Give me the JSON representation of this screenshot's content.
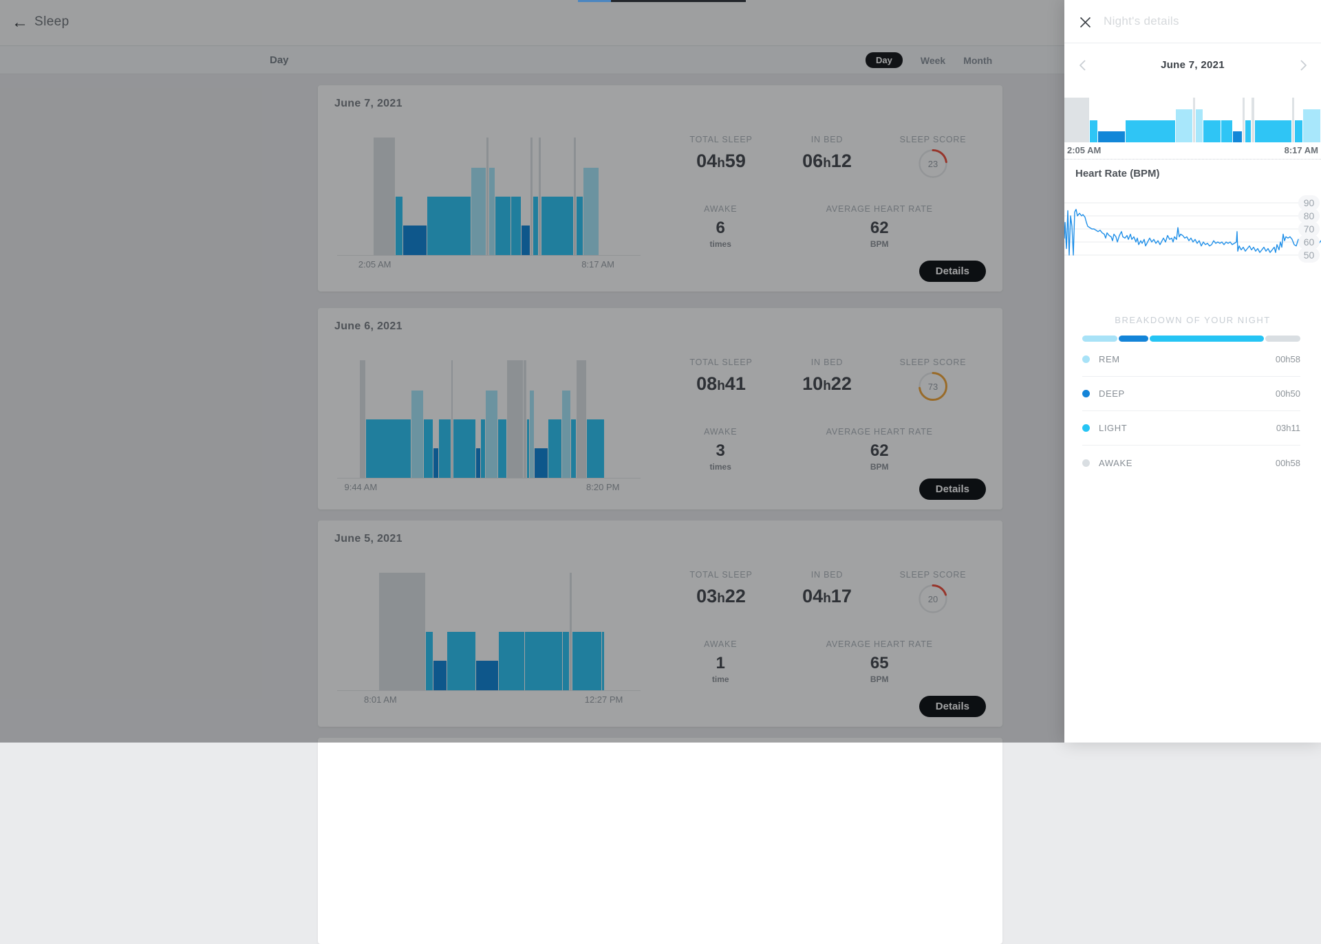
{
  "sleep_list": {
    "header": {
      "title": "Sleep"
    },
    "toolbar": {
      "section_label": "Day",
      "view_options": [
        "Day",
        "Week",
        "Month"
      ],
      "active_view": "Day"
    },
    "stat_labels": {
      "total_sleep": "TOTAL SLEEP",
      "in_bed": "IN BED",
      "sleep_score": "SLEEP SCORE",
      "awake": "AWAKE",
      "avg_hr": "AVERAGE HEART RATE",
      "details": "Details"
    },
    "cards": [
      {
        "date": "June 7, 2021",
        "hypnogram": {
          "start_time": "2:05 AM",
          "end_time": "8:17 AM",
          "segments": [
            [
              "gap",
              52
            ],
            [
              "awake",
              31
            ],
            [
              "light",
              10
            ],
            [
              "deep",
              34
            ],
            [
              "light",
              62
            ],
            [
              "rem",
              21
            ],
            [
              "awake",
              3
            ],
            [
              "rem",
              8
            ],
            [
              "light",
              22
            ],
            [
              "light",
              14
            ],
            [
              "deep",
              11
            ],
            [
              "awake",
              3
            ],
            [
              "light",
              7
            ],
            [
              "awake",
              3
            ],
            [
              "light",
              46
            ],
            [
              "awake",
              3
            ],
            [
              "light",
              9
            ],
            [
              "rem",
              22
            ],
            [
              "gap",
              59
            ]
          ]
        },
        "stats": {
          "total_sleep": "04h59",
          "in_bed": "06h12",
          "score": 23,
          "score_color": "#ef4f3e",
          "awake_count": "6",
          "awake_unit": "times",
          "avg_hr": "62",
          "hr_unit": "BPM"
        }
      },
      {
        "date": "June 6, 2021",
        "hypnogram": {
          "start_time": "9:44 AM",
          "end_time": "8:20 PM",
          "segments": [
            [
              "gap",
              32
            ],
            [
              "awake",
              8
            ],
            [
              "light",
              64
            ],
            [
              "rem",
              17
            ],
            [
              "light",
              12
            ],
            [
              "deep",
              7
            ],
            [
              "light",
              17
            ],
            [
              "awake",
              2
            ],
            [
              "light",
              31
            ],
            [
              "deep",
              6
            ],
            [
              "light",
              6
            ],
            [
              "rem",
              17
            ],
            [
              "light",
              12
            ],
            [
              "awake",
              22
            ],
            [
              "awake",
              4
            ],
            [
              "light",
              3
            ],
            [
              "rem",
              6
            ],
            [
              "deep",
              18
            ],
            [
              "light",
              19
            ],
            [
              "rem",
              12
            ],
            [
              "light",
              7
            ],
            [
              "awake",
              13
            ],
            [
              "light",
              25
            ],
            [
              "gap",
              51
            ]
          ]
        },
        "stats": {
          "total_sleep": "08h41",
          "in_bed": "10h22",
          "score": 73,
          "score_color": "#f2a73b",
          "awake_count": "3",
          "awake_unit": "times",
          "avg_hr": "62",
          "hr_unit": "BPM"
        }
      },
      {
        "date": "June 5, 2021",
        "hypnogram": {
          "start_time": "8:01 AM",
          "end_time": "12:27 PM",
          "segments": [
            [
              "gap",
              60
            ],
            [
              "awake",
              65
            ],
            [
              "light",
              10
            ],
            [
              "deep",
              19
            ],
            [
              "light",
              40
            ],
            [
              "deep",
              31
            ],
            [
              "light",
              36
            ],
            [
              "light",
              53
            ],
            [
              "light",
              9
            ],
            [
              "awake",
              3
            ],
            [
              "light",
              41
            ],
            [
              "light",
              3
            ],
            [
              "gap",
              51
            ]
          ]
        },
        "stats": {
          "total_sleep": "03h22",
          "in_bed": "04h17",
          "score": 20,
          "score_color": "#ef4f3e",
          "awake_count": "1",
          "awake_unit": "time",
          "avg_hr": "65",
          "hr_unit": "BPM"
        }
      }
    ]
  },
  "panel": {
    "title": "Night's details",
    "date": "June 7, 2021",
    "hypnogram": {
      "start_time": "2:05 AM",
      "end_time": "8:17 AM",
      "segments": [
        [
          "awake",
          31
        ],
        [
          "light",
          10
        ],
        [
          "deep",
          34
        ],
        [
          "light",
          62
        ],
        [
          "rem",
          21
        ],
        [
          "awake",
          3
        ],
        [
          "rem",
          8
        ],
        [
          "light",
          22
        ],
        [
          "light",
          14
        ],
        [
          "deep",
          11
        ],
        [
          "awake",
          3
        ],
        [
          "light",
          7
        ],
        [
          "awake",
          3
        ],
        [
          "light",
          46
        ],
        [
          "awake",
          3
        ],
        [
          "light",
          9
        ],
        [
          "rem",
          22
        ]
      ]
    },
    "heart_rate": {
      "title": "Heart Rate (BPM)",
      "y_ticks": [
        90,
        80,
        70,
        60,
        50
      ],
      "line_color": "#1f8fe8",
      "series": [
        [
          0,
          63
        ],
        [
          1,
          75
        ],
        [
          3,
          55
        ],
        [
          5,
          84
        ],
        [
          7,
          50
        ],
        [
          9,
          80
        ],
        [
          11,
          72
        ],
        [
          13,
          50
        ],
        [
          15,
          83
        ],
        [
          17,
          85
        ],
        [
          19,
          80
        ],
        [
          22,
          82
        ],
        [
          25,
          80
        ],
        [
          27,
          81
        ],
        [
          30,
          79
        ],
        [
          32,
          75
        ],
        [
          34,
          72
        ],
        [
          37,
          71
        ],
        [
          40,
          70
        ],
        [
          43,
          70
        ],
        [
          46,
          69
        ],
        [
          49,
          68
        ],
        [
          52,
          69
        ],
        [
          55,
          67
        ],
        [
          58,
          66
        ],
        [
          60,
          63
        ],
        [
          62,
          67
        ],
        [
          65,
          65
        ],
        [
          68,
          64
        ],
        [
          70,
          61
        ],
        [
          72,
          66
        ],
        [
          75,
          64
        ],
        [
          77,
          60
        ],
        [
          80,
          65
        ],
        [
          83,
          68
        ],
        [
          85,
          64
        ],
        [
          88,
          63
        ],
        [
          91,
          65
        ],
        [
          93,
          62
        ],
        [
          96,
          66
        ],
        [
          98,
          62
        ],
        [
          101,
          64
        ],
        [
          104,
          60
        ],
        [
          106,
          63
        ],
        [
          108,
          58
        ],
        [
          111,
          61
        ],
        [
          113,
          59
        ],
        [
          116,
          62
        ],
        [
          118,
          57
        ],
        [
          121,
          60
        ],
        [
          124,
          63
        ],
        [
          127,
          60
        ],
        [
          130,
          62
        ],
        [
          133,
          59
        ],
        [
          136,
          61
        ],
        [
          139,
          58
        ],
        [
          141,
          60
        ],
        [
          144,
          63
        ],
        [
          147,
          60
        ],
        [
          150,
          65
        ],
        [
          153,
          62
        ],
        [
          156,
          63
        ],
        [
          158,
          60
        ],
        [
          160,
          64
        ],
        [
          163,
          62
        ],
        [
          165,
          71
        ],
        [
          167,
          64
        ],
        [
          169,
          66
        ],
        [
          172,
          65
        ],
        [
          175,
          63
        ],
        [
          178,
          64
        ],
        [
          181,
          61
        ],
        [
          184,
          63
        ],
        [
          187,
          60
        ],
        [
          190,
          62
        ],
        [
          193,
          59
        ],
        [
          196,
          61
        ],
        [
          199,
          57
        ],
        [
          202,
          60
        ],
        [
          205,
          58
        ],
        [
          208,
          59
        ],
        [
          211,
          57
        ],
        [
          214,
          58
        ],
        [
          217,
          61
        ],
        [
          220,
          59
        ],
        [
          223,
          60
        ],
        [
          226,
          59
        ],
        [
          229,
          60
        ],
        [
          232,
          58
        ],
        [
          235,
          60
        ],
        [
          238,
          59
        ],
        [
          241,
          60
        ],
        [
          244,
          58
        ],
        [
          247,
          59
        ],
        [
          250,
          60
        ],
        [
          251,
          68
        ],
        [
          252,
          53
        ],
        [
          254,
          57
        ],
        [
          257,
          54
        ],
        [
          260,
          56
        ],
        [
          263,
          53
        ],
        [
          266,
          55
        ],
        [
          269,
          57
        ],
        [
          272,
          54
        ],
        [
          275,
          56
        ],
        [
          278,
          53
        ],
        [
          281,
          55
        ],
        [
          284,
          52
        ],
        [
          287,
          54
        ],
        [
          290,
          56
        ],
        [
          293,
          53
        ],
        [
          296,
          55
        ],
        [
          299,
          52
        ],
        [
          302,
          54
        ],
        [
          305,
          56
        ],
        [
          307,
          52
        ],
        [
          309,
          58
        ],
        [
          312,
          54
        ],
        [
          314,
          60
        ],
        [
          316,
          56
        ],
        [
          318,
          66
        ],
        [
          320,
          61
        ],
        [
          322,
          64
        ],
        [
          325,
          63
        ],
        [
          328,
          64
        ],
        [
          331,
          62
        ],
        [
          334,
          58
        ],
        [
          337,
          57
        ],
        [
          340,
          62
        ],
        [
          343,
          61
        ],
        [
          346,
          57
        ],
        [
          349,
          62
        ],
        [
          352,
          60
        ],
        [
          355,
          62
        ],
        [
          358,
          59
        ],
        [
          361,
          61
        ],
        [
          364,
          60
        ],
        [
          367,
          62
        ],
        [
          370,
          59
        ],
        [
          373,
          61
        ]
      ]
    },
    "breakdown": {
      "title": "BREAKDOWN OF YOUR NIGHT",
      "stages": [
        {
          "label": "REM",
          "duration": "00h58",
          "minutes": 58,
          "color": "#a8e2f7"
        },
        {
          "label": "DEEP",
          "duration": "00h50",
          "minutes": 50,
          "color": "#1384d8"
        },
        {
          "label": "LIGHT",
          "duration": "03h11",
          "minutes": 191,
          "color": "#25c4f4"
        },
        {
          "label": "AWAKE",
          "duration": "00h58",
          "minutes": 58,
          "color": "#d9dee2"
        }
      ]
    }
  },
  "stage_style": {
    "colors": {
      "awake": "#dee2e5",
      "light": "#2fc5f5",
      "deep": "#1287d8",
      "rem": "#a8e7fb",
      "gap": "transparent"
    },
    "heights": {
      "awake": 100,
      "rem": 74,
      "light": 50,
      "deep": 25,
      "gap": 0
    }
  }
}
